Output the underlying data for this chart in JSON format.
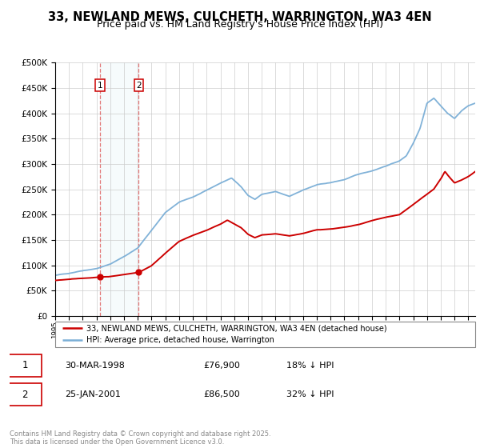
{
  "title": "33, NEWLAND MEWS, CULCHETH, WARRINGTON, WA3 4EN",
  "subtitle": "Price paid vs. HM Land Registry's House Price Index (HPI)",
  "legend_label_red": "33, NEWLAND MEWS, CULCHETH, WARRINGTON, WA3 4EN (detached house)",
  "legend_label_blue": "HPI: Average price, detached house, Warrington",
  "footer": "Contains HM Land Registry data © Crown copyright and database right 2025.\nThis data is licensed under the Open Government Licence v3.0.",
  "annotation1_date": "30-MAR-1998",
  "annotation1_price": "£76,900",
  "annotation1_hpi": "18% ↓ HPI",
  "annotation2_date": "25-JAN-2001",
  "annotation2_price": "£86,500",
  "annotation2_hpi": "32% ↓ HPI",
  "sale1_year": 1998.25,
  "sale1_value": 76900,
  "sale2_year": 2001.07,
  "sale2_value": 86500,
  "ylim": [
    0,
    500000
  ],
  "xlim_start": 1995,
  "xlim_end": 2025.5,
  "background_color": "#ffffff",
  "grid_color": "#cccccc",
  "red_color": "#cc0000",
  "blue_color": "#7aaed6",
  "title_fontsize": 10.5,
  "subtitle_fontsize": 9
}
